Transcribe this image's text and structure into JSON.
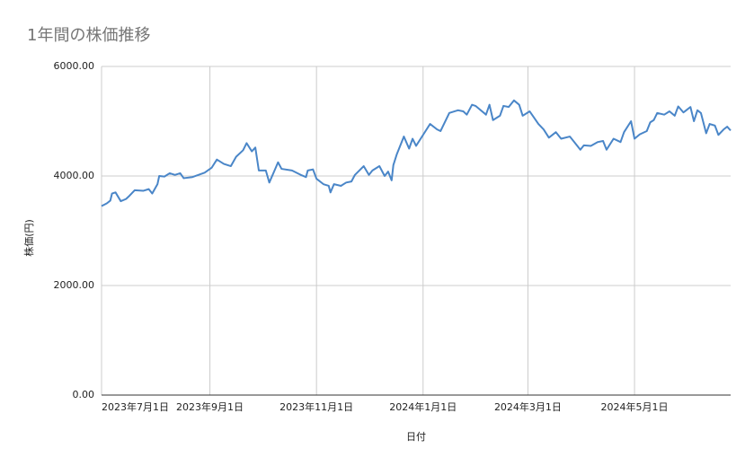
{
  "chart_data": {
    "type": "line",
    "title": "1年間の株価推移",
    "x_label": "日付",
    "y_label": "株価(円)",
    "color": "#4a86c8",
    "grid": true,
    "xlim": [
      "2023-07-01",
      "2024-06-25"
    ],
    "xticks": [
      {
        "value": "2023-07-01",
        "label": "2023年7月1日"
      },
      {
        "value": "2023-09-01",
        "label": "2023年9月1日"
      },
      {
        "value": "2023-11-01",
        "label": "2023年11月1日"
      },
      {
        "value": "2024-01-01",
        "label": "2024年1月1日"
      },
      {
        "value": "2024-03-01",
        "label": "2024年3月1日"
      },
      {
        "value": "2024-05-01",
        "label": "2024年5月1日"
      }
    ],
    "ylim": [
      0,
      6000
    ],
    "yticks": [
      {
        "value": 0,
        "label": "0.00"
      },
      {
        "value": 2000,
        "label": "2000.00"
      },
      {
        "value": 4000,
        "label": "4000.00"
      },
      {
        "value": 6000,
        "label": "6000.00"
      }
    ],
    "x": [
      "2023-07-01",
      "2023-07-04",
      "2023-07-06",
      "2023-07-07",
      "2023-07-09",
      "2023-07-12",
      "2023-07-15",
      "2023-07-17",
      "2023-07-20",
      "2023-07-25",
      "2023-07-28",
      "2023-07-30",
      "2023-08-02",
      "2023-08-03",
      "2023-08-06",
      "2023-08-09",
      "2023-08-12",
      "2023-08-15",
      "2023-08-17",
      "2023-08-22",
      "2023-08-29",
      "2023-09-02",
      "2023-09-05",
      "2023-09-09",
      "2023-09-13",
      "2023-09-16",
      "2023-09-20",
      "2023-09-22",
      "2023-09-25",
      "2023-09-27",
      "2023-09-29",
      "2023-10-03",
      "2023-10-05",
      "2023-10-08",
      "2023-10-10",
      "2023-10-12",
      "2023-10-18",
      "2023-10-23",
      "2023-10-26",
      "2023-10-27",
      "2023-10-30",
      "2023-11-01",
      "2023-11-05",
      "2023-11-08",
      "2023-11-09",
      "2023-11-11",
      "2023-11-15",
      "2023-11-18",
      "2023-11-21",
      "2023-11-23",
      "2023-11-28",
      "2023-12-01",
      "2023-12-03",
      "2023-12-07",
      "2023-12-10",
      "2023-12-12",
      "2023-12-14",
      "2023-12-15",
      "2023-12-17",
      "2023-12-21",
      "2023-12-24",
      "2023-12-26",
      "2023-12-28",
      "2024-01-01",
      "2024-01-05",
      "2024-01-09",
      "2024-01-11",
      "2024-01-16",
      "2024-01-21",
      "2024-01-24",
      "2024-01-26",
      "2024-01-29",
      "2024-01-31",
      "2024-02-06",
      "2024-02-08",
      "2024-02-10",
      "2024-02-14",
      "2024-02-16",
      "2024-02-19",
      "2024-02-22",
      "2024-02-25",
      "2024-02-27",
      "2024-03-02",
      "2024-03-07",
      "2024-03-10",
      "2024-03-13",
      "2024-03-17",
      "2024-03-20",
      "2024-03-25",
      "2024-03-28",
      "2024-03-31",
      "2024-04-02",
      "2024-04-06",
      "2024-04-10",
      "2024-04-13",
      "2024-04-15",
      "2024-04-19",
      "2024-04-23",
      "2024-04-25",
      "2024-04-29",
      "2024-05-01",
      "2024-05-04",
      "2024-05-08",
      "2024-05-10",
      "2024-05-12",
      "2024-05-14",
      "2024-05-18",
      "2024-05-21",
      "2024-05-24",
      "2024-05-26",
      "2024-05-29",
      "2024-06-02",
      "2024-06-04",
      "2024-06-06",
      "2024-06-08",
      "2024-06-11",
      "2024-06-13",
      "2024-06-16",
      "2024-06-18",
      "2024-06-21",
      "2024-06-23",
      "2024-06-25"
    ],
    "values": [
      3450,
      3500,
      3550,
      3680,
      3700,
      3540,
      3580,
      3640,
      3740,
      3730,
      3760,
      3680,
      3850,
      4000,
      3990,
      4050,
      4020,
      4050,
      3960,
      3980,
      4060,
      4150,
      4300,
      4220,
      4180,
      4350,
      4470,
      4600,
      4450,
      4520,
      4100,
      4100,
      3880,
      4100,
      4250,
      4130,
      4100,
      4020,
      3980,
      4100,
      4120,
      3950,
      3850,
      3820,
      3700,
      3850,
      3820,
      3880,
      3900,
      4020,
      4180,
      4020,
      4100,
      4180,
      4000,
      4080,
      3920,
      4200,
      4400,
      4720,
      4500,
      4680,
      4550,
      4750,
      4950,
      4850,
      4820,
      5150,
      5200,
      5180,
      5120,
      5300,
      5280,
      5120,
      5300,
      5020,
      5100,
      5280,
      5260,
      5380,
      5300,
      5100,
      5180,
      4950,
      4850,
      4700,
      4800,
      4680,
      4720,
      4600,
      4480,
      4560,
      4550,
      4620,
      4640,
      4480,
      4680,
      4620,
      4800,
      5000,
      4680,
      4760,
      4820,
      4980,
      5020,
      5150,
      5120,
      5180,
      5100,
      5270,
      5160,
      5260,
      5000,
      5200,
      5150,
      4780,
      4950,
      4920,
      4750,
      4850,
      4900,
      4830
    ]
  }
}
